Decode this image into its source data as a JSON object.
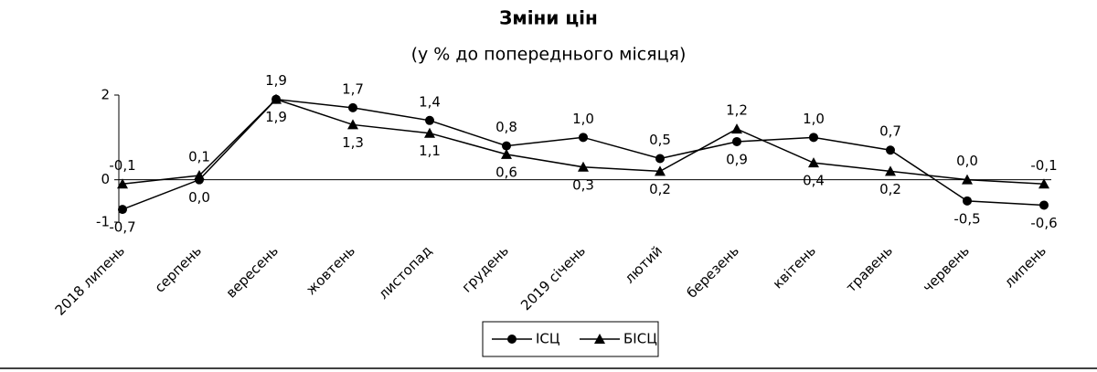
{
  "chart_data": {
    "type": "line",
    "title": "Зміни цін",
    "subtitle": "(у % до попереднього місяця)",
    "categories": [
      "2018 липень",
      "серпень",
      "вересень",
      "жовтень",
      "листопад",
      "грудень",
      "2019 січень",
      "лютий",
      "березень",
      "квітень",
      "травень",
      "червень",
      "липень"
    ],
    "series": [
      {
        "name": "ІСЦ",
        "color": "#000000",
        "marker": "circle",
        "values": [
          -0.7,
          0.0,
          1.9,
          1.7,
          1.4,
          0.8,
          1.0,
          0.5,
          0.9,
          1.0,
          0.7,
          -0.5,
          -0.6
        ],
        "value_labels": [
          "-0,7",
          "0,0",
          "1,9",
          "1,7",
          "1,4",
          "0,8",
          "1,0",
          "0,5",
          "0,9",
          "1,0",
          "0,7",
          "-0,5",
          "-0,6"
        ]
      },
      {
        "name": "БІСЦ",
        "color": "#000000",
        "marker": "triangle",
        "values": [
          -0.1,
          0.1,
          1.9,
          1.3,
          1.1,
          0.6,
          0.3,
          0.2,
          1.2,
          0.4,
          0.2,
          0.0,
          -0.1
        ],
        "value_labels": [
          "-0,1",
          "0,1",
          "1,9",
          "1,3",
          "1,1",
          "0,6",
          "0,3",
          "0,2",
          "1,2",
          "0,4",
          "0,2",
          "0,0",
          "-0,1"
        ]
      }
    ],
    "ylim": [
      -1,
      2
    ],
    "yticks": [
      -1,
      0,
      2
    ],
    "legend": "bottom"
  }
}
